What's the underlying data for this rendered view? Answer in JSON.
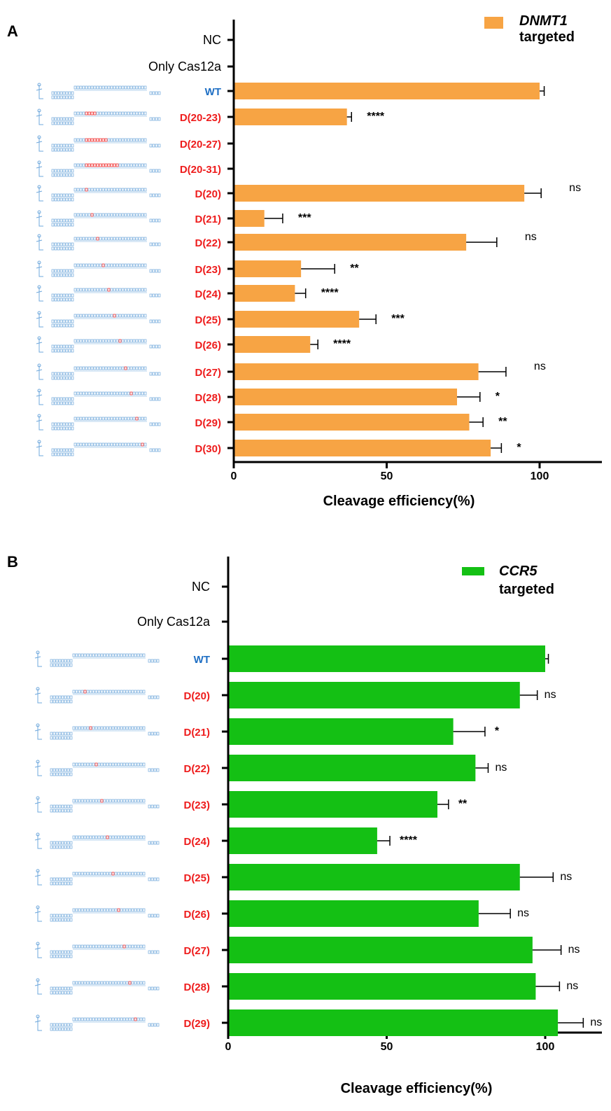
{
  "colors": {
    "panel_a_bar": "#f7a444",
    "panel_b_bar": "#14c014",
    "wt_label": "#1f6fc4",
    "mutant_label": "#ee1c1c",
    "default_label": "#000000",
    "structure_line": "#6fa8dc",
    "structure_mutation": "#ee1c1c"
  },
  "chart_data": [
    {
      "panel": "A",
      "type": "bar",
      "orientation": "horizontal",
      "legend": {
        "gene": "DNMT1",
        "text": "targeted",
        "position": "top-right"
      },
      "xlabel": "Cleavage efficiency(%)",
      "xlim": [
        0,
        120
      ],
      "xticks": [
        0,
        50,
        100
      ],
      "grid": false,
      "categories": [
        "NC",
        "Only Cas12a",
        "WT",
        "D(20-23)",
        "D(20-27)",
        "D(20-31)",
        "D(20)",
        "D(21)",
        "D(22)",
        "D(23)",
        "D(24)",
        "D(25)",
        "D(26)",
        "D(27)",
        "D(28)",
        "D(29)",
        "D(30)"
      ],
      "category_style": [
        "plain",
        "plain",
        "wt",
        "mutant",
        "mutant",
        "mutant",
        "mutant",
        "mutant",
        "mutant",
        "mutant",
        "mutant",
        "mutant",
        "mutant",
        "mutant",
        "mutant",
        "mutant",
        "mutant"
      ],
      "structure_icon": [
        false,
        false,
        true,
        true,
        true,
        true,
        true,
        true,
        true,
        true,
        true,
        true,
        true,
        true,
        true,
        true,
        true
      ],
      "mutation_index": [
        null,
        null,
        null,
        0,
        0,
        0,
        0,
        1,
        2,
        3,
        4,
        5,
        6,
        7,
        8,
        9,
        10
      ],
      "mutation_width": [
        null,
        null,
        null,
        4,
        8,
        12,
        1,
        1,
        1,
        1,
        1,
        1,
        1,
        1,
        1,
        1,
        1
      ],
      "values": [
        0,
        0,
        100,
        37,
        0,
        0,
        95,
        10,
        76,
        22,
        20,
        41,
        25,
        80,
        73,
        77,
        84
      ],
      "errors": [
        0,
        0,
        1.5,
        1.5,
        0,
        0,
        5.5,
        6,
        10,
        11,
        3.5,
        5.5,
        2.5,
        9,
        7.5,
        4.5,
        3.5
      ],
      "significance": [
        "",
        "",
        "",
        "****",
        "",
        "",
        "ns",
        "***",
        "ns",
        "**",
        "****",
        "***",
        "****",
        "ns",
        "*",
        "**",
        "*"
      ]
    },
    {
      "panel": "B",
      "type": "bar",
      "orientation": "horizontal",
      "legend": {
        "gene": "CCR5",
        "text": "targeted",
        "position": "top-right"
      },
      "xlabel": "Cleavage efficiency(%)",
      "xlim": [
        0,
        117
      ],
      "xticks": [
        0,
        50,
        100
      ],
      "grid": false,
      "categories": [
        "NC",
        "Only Cas12a",
        "WT",
        "D(20)",
        "D(21)",
        "D(22)",
        "D(23)",
        "D(24)",
        "D(25)",
        "D(26)",
        "D(27)",
        "D(28)",
        "D(29)"
      ],
      "category_style": [
        "plain",
        "plain",
        "wt",
        "mutant",
        "mutant",
        "mutant",
        "mutant",
        "mutant",
        "mutant",
        "mutant",
        "mutant",
        "mutant",
        "mutant"
      ],
      "structure_icon": [
        false,
        false,
        true,
        true,
        true,
        true,
        true,
        true,
        true,
        true,
        true,
        true,
        true
      ],
      "mutation_index": [
        null,
        null,
        null,
        0,
        1,
        2,
        3,
        4,
        5,
        6,
        7,
        8,
        9
      ],
      "mutation_width": [
        null,
        null,
        null,
        1,
        1,
        1,
        1,
        1,
        1,
        1,
        1,
        1,
        1
      ],
      "values": [
        0,
        0,
        100,
        92,
        71,
        78,
        66,
        47,
        92,
        79,
        96,
        97,
        104
      ],
      "errors": [
        0,
        0,
        1,
        5.5,
        10,
        4,
        3.5,
        4,
        10.5,
        10,
        9,
        7.5,
        8
      ],
      "significance": [
        "",
        "",
        "",
        "ns",
        "*",
        "ns",
        "**",
        "****",
        "ns",
        "ns",
        "ns",
        "ns",
        "ns"
      ]
    }
  ]
}
